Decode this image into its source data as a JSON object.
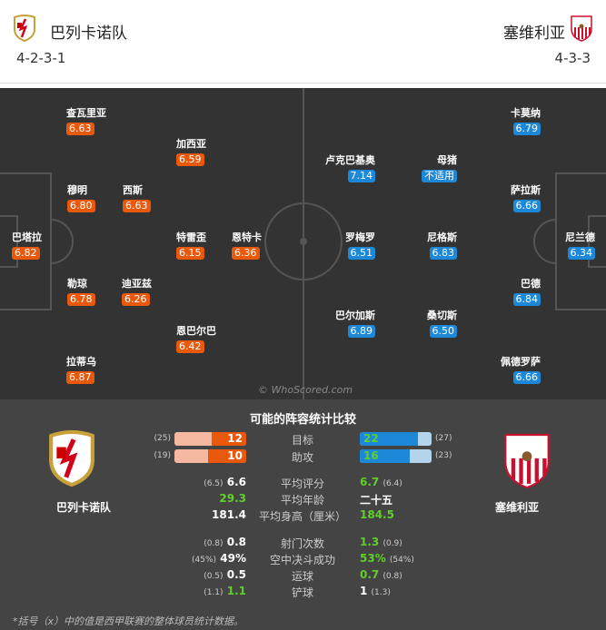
{
  "header": {
    "home": {
      "name": "巴列卡诺队",
      "formation": "4-2-3-1"
    },
    "away": {
      "name": "塞维利亚",
      "formation": "4-3-3"
    }
  },
  "pitch": {
    "watermark": "© WhoScored.com",
    "home_players": [
      {
        "name": "查瓦里亚",
        "rating": "6.63"
      },
      {
        "name": "加西亚",
        "rating": "6.59"
      },
      {
        "name": "穆明",
        "rating": "6.80"
      },
      {
        "name": "西斯",
        "rating": "6.63"
      },
      {
        "name": "巴塔拉",
        "rating": "6.82"
      },
      {
        "name": "特雷歪",
        "rating": "6.15"
      },
      {
        "name": "恩特卡",
        "rating": "6.36"
      },
      {
        "name": "勒琼",
        "rating": "6.78"
      },
      {
        "name": "迪亚兹",
        "rating": "6.26"
      },
      {
        "name": "恩巴尔巴",
        "rating": "6.42"
      },
      {
        "name": "拉蒂乌",
        "rating": "6.87"
      }
    ],
    "away_players": [
      {
        "name": "卡莫纳",
        "rating": "6.79"
      },
      {
        "name": "卢克巴基奥",
        "rating": "7.14"
      },
      {
        "name": "母猪",
        "rating": "不适用"
      },
      {
        "name": "萨拉斯",
        "rating": "6.66"
      },
      {
        "name": "罗梅罗",
        "rating": "6.51"
      },
      {
        "name": "尼格斯",
        "rating": "6.83"
      },
      {
        "name": "尼兰德",
        "rating": "6.34"
      },
      {
        "name": "巴德",
        "rating": "6.84"
      },
      {
        "name": "巴尔加斯",
        "rating": "6.89"
      },
      {
        "name": "桑切斯",
        "rating": "6.50"
      },
      {
        "name": "佩德罗萨",
        "rating": "6.66"
      }
    ]
  },
  "stats": {
    "title": "可能的阵容统计比较",
    "home_name": "巴列卡诺队",
    "away_name": "塞维利亚",
    "bars": [
      {
        "label": "目标",
        "home": "12",
        "home_league": "(25)",
        "home_val": 12,
        "home_max": 25,
        "away": "22",
        "away_league": "(27)",
        "away_val": 22,
        "away_max": 27
      },
      {
        "label": "助攻",
        "home": "10",
        "home_league": "(19)",
        "home_val": 10,
        "home_max": 19,
        "away": "16",
        "away_league": "(23)",
        "away_val": 16,
        "away_max": 23
      }
    ],
    "rows": [
      {
        "label": "平均评分",
        "home": "6.6",
        "home_league": "(6.5)",
        "away": "6.7",
        "away_league": "(6.4)",
        "better": "away"
      },
      {
        "label": "平均年龄",
        "home": "29.3",
        "home_league": "",
        "away": "二十五",
        "away_league": "",
        "better": "home"
      },
      {
        "label": "平均身高（厘米）",
        "home": "181.4",
        "home_league": "",
        "away": "184.5",
        "away_league": "",
        "better": "away"
      },
      {
        "label": "射门次数",
        "home": "0.8",
        "home_league": "(0.8)",
        "away": "1.3",
        "away_league": "(0.9)",
        "better": "away"
      },
      {
        "label": "空中决斗成功",
        "home": "49%",
        "home_league": "(45%)",
        "away": "53%",
        "away_league": "(54%)",
        "better": "away"
      },
      {
        "label": "运球",
        "home": "0.5",
        "home_league": "(0.5)",
        "away": "0.7",
        "away_league": "(0.8)",
        "better": "away"
      },
      {
        "label": "铲球",
        "home": "1.1",
        "home_league": "(1.1)",
        "away": "1",
        "away_league": "(1.3)",
        "better": "home"
      }
    ],
    "note": "*括号（x）中的值是西甲联赛的整体球员统计数据。"
  },
  "colors": {
    "home": "#e8590c",
    "home_light": "#f4b9a0",
    "away": "#1e88d8",
    "away_light": "#b3d4ea",
    "better": "#5fd02a"
  }
}
